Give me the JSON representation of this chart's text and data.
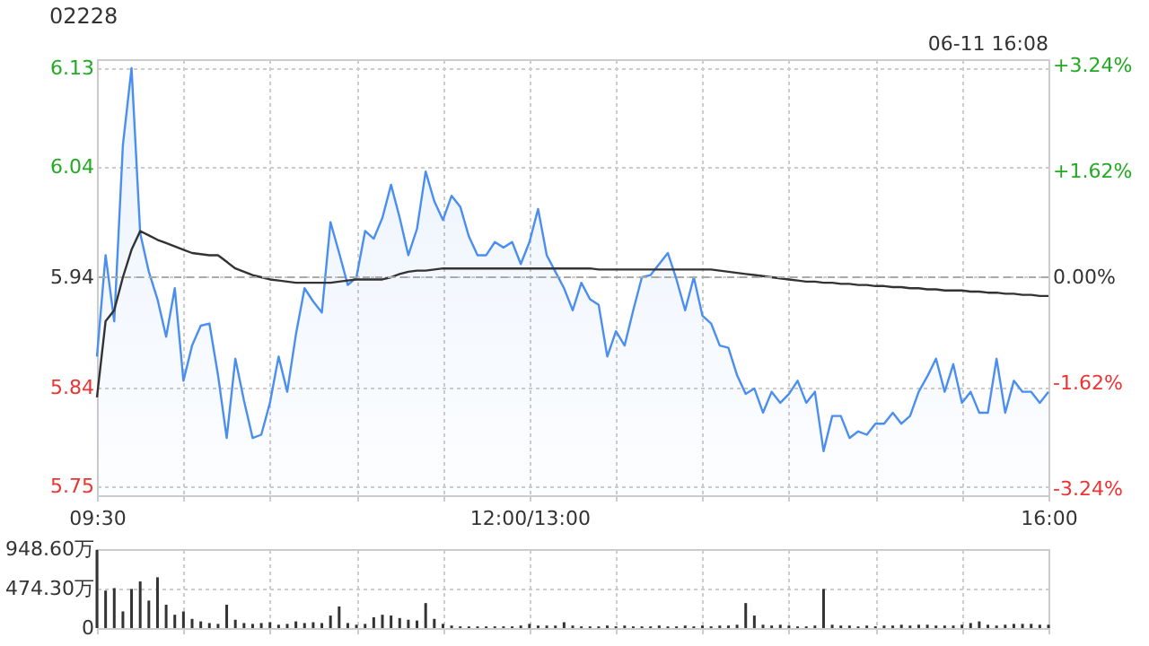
{
  "chart_data": [
    {
      "type": "line",
      "title": "02228",
      "annotations": [
        "06-11 16:08"
      ],
      "categories": [
        "09:30",
        null,
        null,
        null,
        null,
        null,
        null,
        null,
        null,
        null,
        null,
        null,
        null,
        null,
        null,
        null,
        null,
        null,
        null,
        null,
        null,
        null,
        null,
        null,
        null,
        null,
        null,
        null,
        null,
        null,
        null,
        null,
        null,
        null,
        null,
        null,
        null,
        null,
        null,
        null,
        null,
        null,
        null,
        null,
        null,
        null,
        null,
        null,
        null,
        null,
        "12:00/13:00",
        null,
        null,
        null,
        null,
        null,
        null,
        null,
        null,
        null,
        null,
        null,
        null,
        null,
        null,
        null,
        null,
        null,
        null,
        null,
        null,
        null,
        null,
        null,
        null,
        null,
        null,
        null,
        null,
        null,
        null,
        null,
        null,
        null,
        null,
        null,
        null,
        null,
        null,
        null,
        null,
        null,
        null,
        null,
        null,
        null,
        null,
        null,
        null,
        null,
        null,
        null,
        null,
        null,
        null,
        null,
        null,
        null,
        null,
        null,
        "16:00"
      ],
      "ylim": [
        5.742,
        6.138
      ],
      "yticks": [
        5.75,
        5.84,
        5.94,
        6.04,
        6.13
      ],
      "y2lim": [
        -3.33,
        3.33
      ],
      "y2ticks": [
        {
          "value": -3.24,
          "label": "-3.24%"
        },
        {
          "value": -1.62,
          "label": "-1.62%"
        },
        {
          "value": 0,
          "label": "0.00%"
        },
        {
          "value": 1.62,
          "label": "+1.62%"
        },
        {
          "value": 3.24,
          "label": "+3.24%"
        }
      ],
      "grid": true,
      "ref_lines": [
        {
          "axis": "y2",
          "value": 0
        }
      ],
      "series": [
        {
          "type": "area",
          "color": "#4a8ef0",
          "values": [
            5.868,
            5.96,
            5.9,
            6.06,
            6.13,
            5.98,
            5.945,
            5.92,
            5.886,
            5.93,
            5.846,
            5.878,
            5.896,
            5.898,
            5.851,
            5.794,
            5.866,
            5.828,
            5.794,
            5.797,
            5.826,
            5.868,
            5.836,
            5.888,
            5.93,
            5.918,
            5.908,
            5.99,
            5.962,
            5.933,
            5.94,
            5.982,
            5.975,
            5.994,
            6.024,
            5.994,
            5.96,
            5.984,
            6.036,
            6.009,
            5.992,
            6.014,
            6.004,
            5.977,
            5.96,
            5.96,
            5.972,
            5.967,
            5.972,
            5.952,
            5.972,
            6.002,
            5.96,
            5.945,
            5.93,
            5.91,
            5.935,
            5.92,
            5.915,
            5.868,
            5.891,
            5.878,
            5.91,
            5.94,
            5.942,
            5.952,
            5.962,
            5.938,
            5.91,
            5.94,
            5.905,
            5.898,
            5.878,
            5.876,
            5.851,
            5.834,
            5.839,
            5.817,
            5.836,
            5.826,
            5.834,
            5.846,
            5.826,
            5.836,
            5.782,
            5.814,
            5.814,
            5.794,
            5.8,
            5.797,
            5.807,
            5.807,
            5.817,
            5.807,
            5.814,
            5.836,
            5.85,
            5.866,
            5.836,
            5.861,
            5.826,
            5.836,
            5.817,
            5.817,
            5.866,
            5.817,
            5.846,
            5.836,
            5.836,
            5.826,
            5.836
          ]
        },
        {
          "type": "line",
          "color": "#333333",
          "values": [
            5.831,
            5.9,
            5.91,
            5.94,
            5.965,
            5.982,
            5.978,
            5.974,
            5.971,
            5.968,
            5.965,
            5.962,
            5.961,
            5.96,
            5.96,
            5.954,
            5.948,
            5.945,
            5.942,
            5.94,
            5.938,
            5.937,
            5.936,
            5.935,
            5.935,
            5.935,
            5.935,
            5.935,
            5.936,
            5.937,
            5.938,
            5.938,
            5.938,
            5.938,
            5.94,
            5.943,
            5.945,
            5.946,
            5.946,
            5.947,
            5.948,
            5.948,
            5.948,
            5.948,
            5.948,
            5.948,
            5.948,
            5.948,
            5.948,
            5.948,
            5.948,
            5.948,
            5.948,
            5.948,
            5.948,
            5.948,
            5.948,
            5.948,
            5.947,
            5.947,
            5.947,
            5.947,
            5.947,
            5.947,
            5.947,
            5.947,
            5.947,
            5.947,
            5.947,
            5.947,
            5.947,
            5.947,
            5.946,
            5.945,
            5.944,
            5.943,
            5.942,
            5.941,
            5.94,
            5.939,
            5.938,
            5.937,
            5.936,
            5.936,
            5.935,
            5.935,
            5.934,
            5.934,
            5.933,
            5.933,
            5.932,
            5.932,
            5.931,
            5.931,
            5.93,
            5.93,
            5.929,
            5.929,
            5.928,
            5.928,
            5.928,
            5.927,
            5.927,
            5.926,
            5.926,
            5.925,
            5.925,
            5.924,
            5.924,
            5.923,
            5.923
          ]
        }
      ]
    },
    {
      "type": "bar",
      "categories": [
        null,
        null,
        null,
        null,
        null,
        null,
        null,
        null,
        null,
        null,
        null,
        null,
        null,
        null,
        null,
        null,
        null,
        null,
        null,
        null,
        null,
        null,
        null,
        null,
        null,
        null,
        null,
        null,
        null,
        null,
        null,
        null,
        null,
        null,
        null,
        null,
        null,
        null,
        null,
        null,
        null,
        null,
        null,
        null,
        null,
        null,
        null,
        null,
        null,
        null,
        null,
        null,
        null,
        null,
        null,
        null,
        null,
        null,
        null,
        null,
        null,
        null,
        null,
        null,
        null,
        null,
        null,
        null,
        null,
        null,
        null,
        null,
        null,
        null,
        null,
        null,
        null,
        null,
        null,
        null,
        null,
        null,
        null,
        null,
        null,
        null,
        null,
        null,
        null,
        null,
        null,
        null,
        null,
        null,
        null,
        null,
        null,
        null,
        null,
        null,
        null,
        null,
        null,
        null,
        null,
        null,
        null,
        null,
        null,
        null,
        null
      ],
      "ylim": [
        0,
        948.6
      ],
      "yticks": [
        0,
        {
          "value": 474.3,
          "label": "474.30万"
        },
        {
          "value": 948.6,
          "label": "948.60万"
        }
      ],
      "grid": true,
      "tick_labels": "y",
      "series": [
        {
          "color": "#333333",
          "values": [
            940,
            450,
            480,
            200,
            470,
            560,
            330,
            610,
            280,
            160,
            200,
            110,
            80,
            60,
            50,
            280,
            100,
            60,
            50,
            60,
            70,
            40,
            50,
            80,
            60,
            70,
            60,
            150,
            260,
            60,
            40,
            50,
            130,
            160,
            150,
            120,
            100,
            90,
            300,
            110,
            50,
            30,
            20,
            20,
            20,
            20,
            20,
            20,
            20,
            30,
            50,
            30,
            30,
            30,
            70,
            30,
            20,
            20,
            20,
            30,
            20,
            30,
            20,
            20,
            20,
            30,
            20,
            20,
            30,
            20,
            30,
            20,
            30,
            30,
            40,
            300,
            150,
            40,
            30,
            40,
            30,
            20,
            20,
            30,
            470,
            40,
            30,
            30,
            20,
            30,
            20,
            30,
            30,
            40,
            30,
            40,
            40,
            30,
            30,
            30,
            40,
            60,
            80,
            40,
            30,
            40,
            50,
            50,
            50,
            40,
            40
          ]
        }
      ]
    }
  ]
}
